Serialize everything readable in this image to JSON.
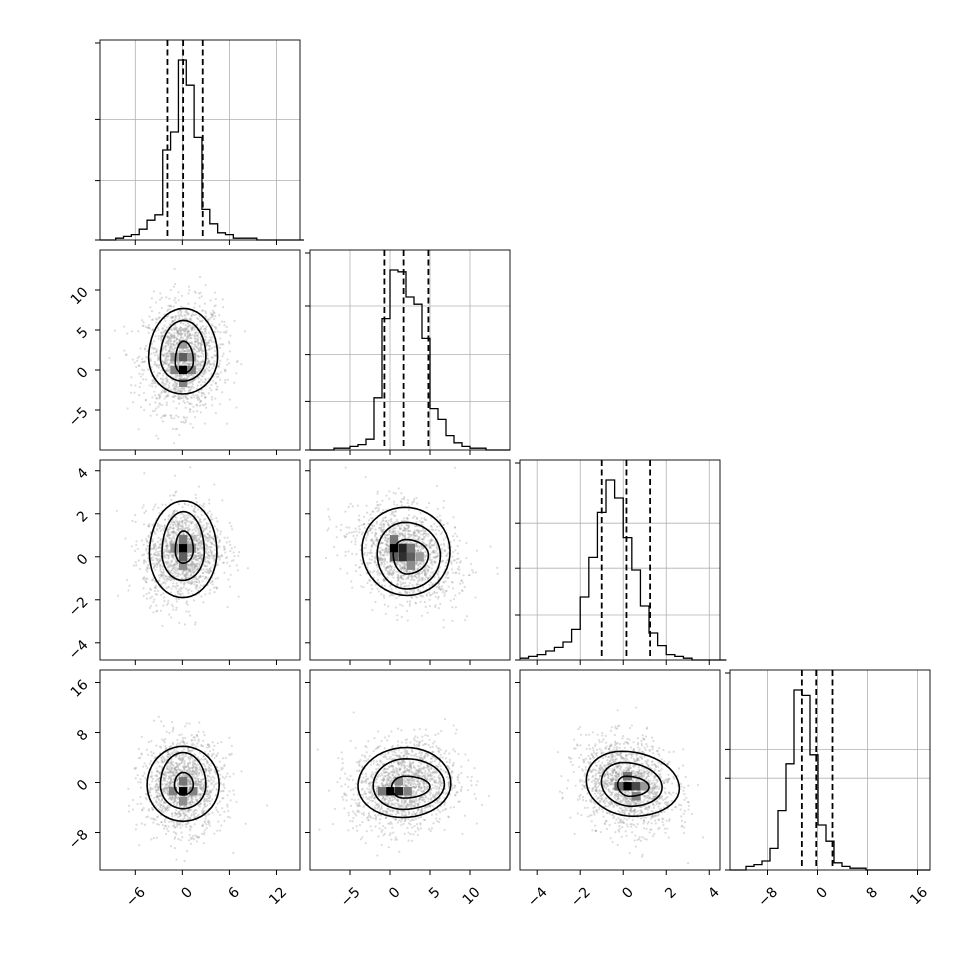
{
  "chart_data": {
    "type": "corner",
    "parameters": [
      {
        "name": "",
        "range": [
          -10.5,
          15
        ],
        "ticks": [
          {
            "value": -6,
            "label": "−6"
          },
          {
            "value": 0,
            "label": "0"
          },
          {
            "value": 6,
            "label": "6"
          },
          {
            "value": 12,
            "label": "12"
          }
        ],
        "hist_left": -10.5,
        "hist_width": 1.0,
        "hist_counts": [
          0,
          0,
          1,
          2,
          3,
          6,
          11,
          14,
          50,
          60,
          100,
          86,
          57,
          17,
          9,
          4,
          3,
          1,
          1,
          1,
          0,
          0,
          0,
          0,
          0,
          0
        ],
        "hist_ymax": 100,
        "hist_grid": [
          0.33,
          0.67
        ],
        "quantiles": [
          -1.9,
          0.1,
          2.6
        ]
      },
      {
        "name": "",
        "range": [
          -10,
          15
        ],
        "ticks": [
          {
            "value": -5,
            "label": "−5"
          },
          {
            "value": 0,
            "label": "0"
          },
          {
            "value": 5,
            "label": "5"
          },
          {
            "value": 10,
            "label": "10"
          }
        ],
        "hist_left": -10,
        "hist_width": 1.0,
        "hist_counts": [
          0,
          0,
          0,
          1,
          1,
          2,
          3,
          6,
          29,
          73,
          100,
          99,
          85,
          81,
          62,
          23,
          17,
          8,
          4,
          2,
          1,
          1,
          0,
          0,
          0
        ],
        "hist_ymax": 100,
        "hist_grid": [
          0.27,
          0.53,
          0.8
        ],
        "quantiles": [
          -0.7,
          1.7,
          4.8
        ]
      },
      {
        "name": "",
        "range": [
          -4.8,
          4.5
        ],
        "ticks": [
          {
            "value": -4,
            "label": "−4"
          },
          {
            "value": -2,
            "label": "−2"
          },
          {
            "value": 0,
            "label": "0"
          },
          {
            "value": 2,
            "label": "2"
          },
          {
            "value": 4,
            "label": "4"
          }
        ],
        "hist_left": -4.8,
        "hist_width": 0.4,
        "hist_counts": [
          1,
          2,
          3,
          5,
          7,
          10,
          17,
          35,
          57,
          82,
          100,
          90,
          68,
          50,
          30,
          15,
          8,
          3,
          2,
          1,
          0,
          0,
          0,
          0
        ],
        "hist_ymax": 100,
        "hist_grid": [
          0.25,
          0.51,
          0.76
        ],
        "quantiles": [
          -1.0,
          0.15,
          1.25
        ]
      },
      {
        "name": "",
        "range": [
          -14,
          18
        ],
        "ticks": [
          {
            "value": -8,
            "label": "−8"
          },
          {
            "value": 0,
            "label": "0"
          },
          {
            "value": 8,
            "label": "8"
          },
          {
            "value": 16,
            "label": "16"
          }
        ],
        "hist_left": -14,
        "hist_width": 1.28,
        "hist_counts": [
          0,
          0,
          2,
          3,
          5,
          12,
          33,
          59,
          100,
          97,
          64,
          25,
          16,
          4,
          2,
          1,
          1,
          0,
          0,
          0,
          0,
          0,
          0,
          0,
          0
        ],
        "hist_ymax": 100,
        "hist_grid": [
          0.51,
          0.67
        ],
        "quantiles": [
          -2.5,
          -0.2,
          2.4
        ]
      }
    ],
    "pairs": [
      {
        "x": 0,
        "y": 1,
        "center": [
          0.1,
          1.6
        ],
        "sd": [
          2.5,
          3.4
        ],
        "rho": 0.05,
        "contours": [
          {
            "dx": [
              1.0,
              1.3
            ],
            "dy": [
              2.6,
              1.4
            ],
            "shift": [
              0.0,
              -0.6
            ]
          },
          {
            "dx": [
              2.9,
              2.9
            ],
            "dy": [
              4.6,
              3.0
            ],
            "shift": [
              0.0,
              0.0
            ]
          },
          {
            "dx": [
              4.4,
              4.4
            ],
            "dy": [
              6.1,
              4.6
            ],
            "shift": [
              0.0,
              0.0
            ]
          }
        ],
        "cells": [
          {
            "x": 0.1,
            "y": 0.0,
            "d": 1.0
          },
          {
            "x": 0.1,
            "y": 1.6,
            "d": 0.6
          },
          {
            "x": -1.0,
            "y": 0.0,
            "d": 0.45
          },
          {
            "x": 1.2,
            "y": 0.0,
            "d": 0.45
          },
          {
            "x": 0.1,
            "y": -1.6,
            "d": 0.45
          },
          {
            "x": 0.1,
            "y": 3.2,
            "d": 0.35
          },
          {
            "x": -1.0,
            "y": 1.6,
            "d": 0.35
          },
          {
            "x": 1.2,
            "y": 1.6,
            "d": 0.35
          }
        ]
      },
      {
        "x": 0,
        "y": 2,
        "center": [
          0.1,
          0.2
        ],
        "sd": [
          2.5,
          1.1
        ],
        "rho": 0.1,
        "contours": [
          {
            "dx": [
              1.0,
              1.3
            ],
            "dy": [
              0.9,
              0.6
            ],
            "shift": [
              0.0,
              0.1
            ]
          },
          {
            "dx": [
              2.7,
              2.7
            ],
            "dy": [
              1.9,
              1.3
            ],
            "shift": [
              0.0,
              0.0
            ]
          },
          {
            "dx": [
              4.3,
              4.3
            ],
            "dy": [
              2.4,
              2.1
            ],
            "shift": [
              0.0,
              0.0
            ]
          }
        ],
        "cells": [
          {
            "x": 0.1,
            "y": 0.4,
            "d": 1.0
          },
          {
            "x": 0.1,
            "y": 0.0,
            "d": 0.6
          },
          {
            "x": 0.1,
            "y": 0.8,
            "d": 0.5
          },
          {
            "x": -1.0,
            "y": 0.4,
            "d": 0.4
          },
          {
            "x": 1.2,
            "y": 0.4,
            "d": 0.4
          },
          {
            "x": 0.1,
            "y": -0.4,
            "d": 0.4
          }
        ]
      },
      {
        "x": 0,
        "y": 3,
        "center": [
          0.1,
          -0.4
        ],
        "sd": [
          2.5,
          3.6
        ],
        "rho": 0.0,
        "contours": [
          {
            "dx": [
              1.1,
              1.3
            ],
            "dy": [
              2.0,
              1.6
            ],
            "shift": [
              0.0,
              0.0
            ]
          },
          {
            "dx": [
              2.9,
              2.9
            ],
            "dy": [
              5.2,
              3.8
            ],
            "shift": [
              0.0,
              0.0
            ]
          },
          {
            "dx": [
              4.6,
              4.6
            ],
            "dy": [
              6.2,
              5.8
            ],
            "shift": [
              0.0,
              0.0
            ]
          }
        ],
        "cells": [
          {
            "x": 0.1,
            "y": -1.4,
            "d": 1.0
          },
          {
            "x": 0.1,
            "y": 0.2,
            "d": 0.5
          },
          {
            "x": -1.2,
            "y": -1.4,
            "d": 0.45
          },
          {
            "x": 1.4,
            "y": -1.4,
            "d": 0.45
          },
          {
            "x": 0.1,
            "y": -3.0,
            "d": 0.4
          }
        ]
      },
      {
        "x": 1,
        "y": 2,
        "center": [
          2.0,
          0.1
        ],
        "sd": [
          3.2,
          1.1
        ],
        "rho": -0.25,
        "contours": [
          {
            "dx": [
              1.6,
              2.8
            ],
            "dy": [
              0.7,
              0.9
            ],
            "shift": [
              0.0,
              0.0
            ]
          },
          {
            "dx": [
              3.6,
              4.3
            ],
            "dy": [
              1.5,
              1.6
            ],
            "shift": [
              0.0,
              0.0
            ]
          },
          {
            "dx": [
              5.5,
              5.5
            ],
            "dy": [
              2.0,
              2.1
            ],
            "shift": [
              0.0,
              0.2
            ]
          }
        ],
        "cells": [
          {
            "x": 0.5,
            "y": 0.4,
            "d": 1.0
          },
          {
            "x": 1.6,
            "y": 0.4,
            "d": 0.85
          },
          {
            "x": 1.6,
            "y": 0.0,
            "d": 0.8
          },
          {
            "x": 2.6,
            "y": 0.0,
            "d": 0.6
          },
          {
            "x": 0.5,
            "y": 0.0,
            "d": 0.6
          },
          {
            "x": 0.5,
            "y": 0.8,
            "d": 0.5
          },
          {
            "x": 2.6,
            "y": 0.4,
            "d": 0.5
          },
          {
            "x": 3.7,
            "y": 0.0,
            "d": 0.35
          },
          {
            "x": 2.6,
            "y": -0.4,
            "d": 0.4
          }
        ]
      },
      {
        "x": 1,
        "y": 3,
        "center": [
          1.8,
          -0.4
        ],
        "sd": [
          3.2,
          3.6
        ],
        "rho": 0.15,
        "contours": [
          {
            "dx": [
              1.6,
              3.2
            ],
            "dy": [
              1.7,
              1.8
            ],
            "shift": [
              0.0,
              -0.3
            ]
          },
          {
            "dx": [
              3.9,
              5.0
            ],
            "dy": [
              4.2,
              3.9
            ],
            "shift": [
              0.0,
              0.0
            ]
          },
          {
            "dx": [
              5.8,
              5.8
            ],
            "dy": [
              6.0,
              5.2
            ],
            "shift": [
              0.0,
              0.0
            ]
          }
        ],
        "cells": [
          {
            "x": 0.0,
            "y": -1.4,
            "d": 1.0
          },
          {
            "x": 1.1,
            "y": -1.4,
            "d": 0.85
          },
          {
            "x": -1.0,
            "y": -1.4,
            "d": 0.5
          },
          {
            "x": 2.2,
            "y": -1.4,
            "d": 0.45
          },
          {
            "x": 1.1,
            "y": 0.2,
            "d": 0.4
          }
        ]
      },
      {
        "x": 2,
        "y": 3,
        "center": [
          0.2,
          -0.4
        ],
        "sd": [
          1.1,
          3.6
        ],
        "rho": -0.2,
        "contours": [
          {
            "dx": [
              0.45,
              1.0
            ],
            "dy": [
              1.6,
              1.6
            ],
            "shift": [
              0.0,
              -0.2
            ]
          },
          {
            "dx": [
              1.2,
              1.6
            ],
            "dy": [
              3.6,
              3.4
            ],
            "shift": [
              0.0,
              0.0
            ]
          },
          {
            "dx": [
              1.9,
              2.4
            ],
            "dy": [
              5.4,
              5.0
            ],
            "shift": [
              0.0,
              0.0
            ]
          }
        ],
        "cells": [
          {
            "x": 0.2,
            "y": -0.6,
            "d": 1.0
          },
          {
            "x": 0.6,
            "y": -0.6,
            "d": 0.7
          },
          {
            "x": -0.2,
            "y": -0.6,
            "d": 0.55
          },
          {
            "x": 0.2,
            "y": 1.0,
            "d": 0.5
          },
          {
            "x": 0.6,
            "y": -2.2,
            "d": 0.45
          },
          {
            "x": 1.0,
            "y": -0.6,
            "d": 0.35
          }
        ]
      }
    ]
  }
}
